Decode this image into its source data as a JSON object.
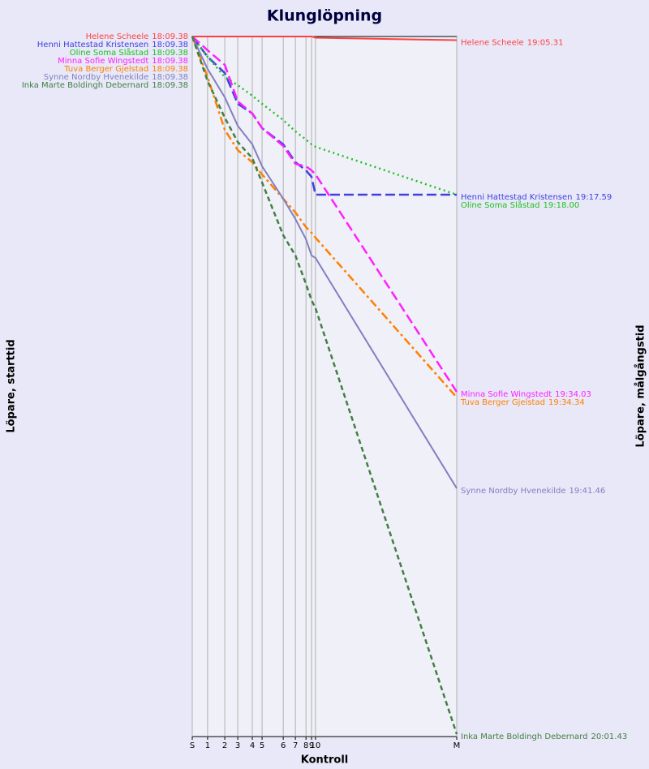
{
  "chart_data": {
    "type": "line",
    "title": "Klunglöpning",
    "x_label": "Kontroll",
    "y_label_left": "Löpare, starttid",
    "y_label_right": "Löpare, målgångstid",
    "x": [
      0,
      5.8,
      12.3,
      17.2,
      22.7,
      26.4,
      34.4,
      39.0,
      43.0,
      45.1,
      46.6,
      100
    ],
    "xlim": [
      0,
      100
    ],
    "xticks": [
      {
        "value": 0,
        "label": "S"
      },
      {
        "value": 5.8,
        "label": "1"
      },
      {
        "value": 12.3,
        "label": "2"
      },
      {
        "value": 17.2,
        "label": "3"
      },
      {
        "value": 22.7,
        "label": "4"
      },
      {
        "value": 26.4,
        "label": "5"
      },
      {
        "value": 34.4,
        "label": "6"
      },
      {
        "value": 39.0,
        "label": "7"
      },
      {
        "value": 43.0,
        "label": "8"
      },
      {
        "value": 45.1,
        "label": "9"
      },
      {
        "value": 46.6,
        "label": "10"
      },
      {
        "value": 100,
        "label": "M"
      }
    ],
    "ylim": [
      0,
      57
    ],
    "grid": true,
    "series": [
      {
        "name": "Helene Scheele",
        "start": "18:09.38",
        "finish": "19:05.31",
        "color": "#ff4040",
        "dash": "solid",
        "values": [
          0,
          0,
          0,
          0,
          0,
          0,
          0,
          0,
          0,
          0,
          0.1,
          0.3
        ]
      },
      {
        "name": "Henni Hattestad Kristensen",
        "start": "18:09.38",
        "finish": "19:17.59",
        "color": "#4040e0",
        "dash": "dashed",
        "values": [
          0,
          1.65,
          2.97,
          5.48,
          6.27,
          7.46,
          8.78,
          10.24,
          10.9,
          11.43,
          12.88,
          12.88
        ]
      },
      {
        "name": "Oline Soma Slåstad",
        "start": "18:09.38",
        "finish": "19:18.00",
        "color": "#20c020",
        "dash": "dotted",
        "values": [
          0,
          1.65,
          3.3,
          3.96,
          4.82,
          5.48,
          6.8,
          7.73,
          8.39,
          8.78,
          8.98,
          12.88
        ]
      },
      {
        "name": "Minna Sofie Wingstedt",
        "start": "18:09.38",
        "finish": "19:34.03",
        "color": "#ff20ff",
        "dash": "dashed",
        "values": [
          0,
          1.12,
          2.31,
          5.28,
          6.27,
          7.46,
          8.92,
          10.37,
          10.57,
          10.9,
          11.23,
          28.93
        ]
      },
      {
        "name": "Tuva Berger Gjelstad",
        "start": "18:09.38",
        "finish": "19:34.34",
        "color": "#ff8000",
        "dash": "dashdot",
        "values": [
          0,
          3.3,
          7.6,
          9.25,
          10.24,
          11.23,
          13.21,
          14.33,
          15.52,
          15.98,
          16.38,
          29.39
        ]
      },
      {
        "name": "Synne Nordby Hvenekilde",
        "start": "18:09.38",
        "finish": "19:41.46",
        "color": "#8080c0",
        "dash": "solid",
        "values": [
          0,
          2.64,
          4.95,
          7.27,
          8.78,
          10.57,
          13.21,
          14.86,
          16.51,
          17.83,
          18.03,
          36.79
        ]
      },
      {
        "name": "Inka Marte Boldingh Debernard",
        "start": "18:09.38",
        "finish": "20:01.43",
        "color": "#408040",
        "dash": "shortdash",
        "values": [
          0,
          3.63,
          6.61,
          8.59,
          9.91,
          11.89,
          16.18,
          17.83,
          20.15,
          21.47,
          22.13,
          56.8
        ]
      }
    ]
  }
}
